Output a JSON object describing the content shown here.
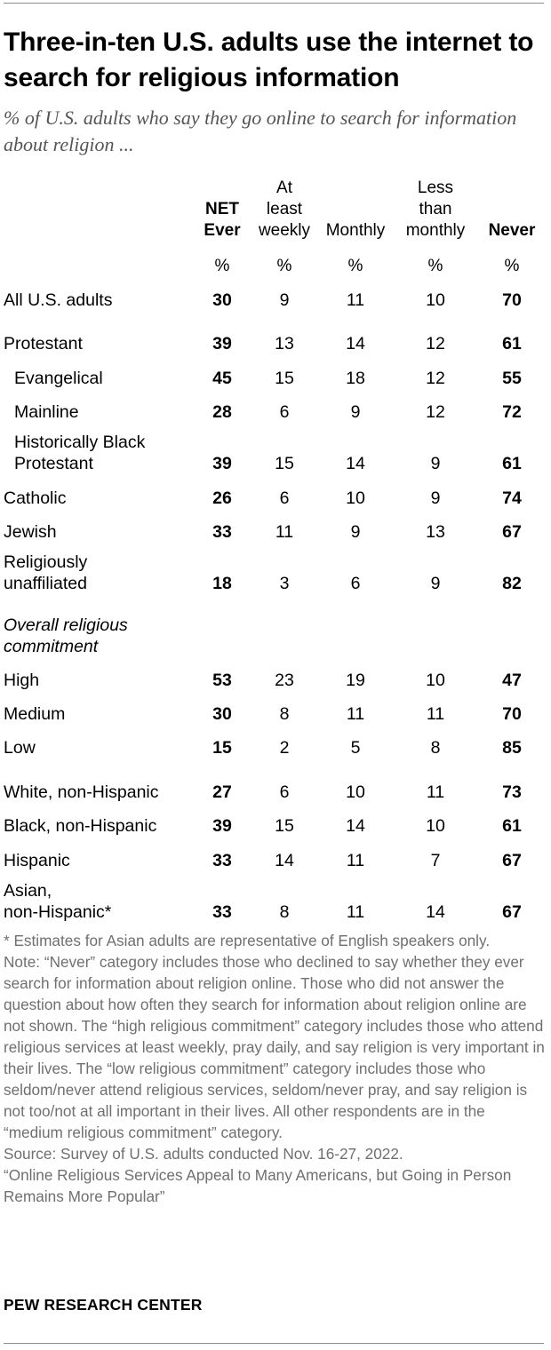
{
  "title": "Three-in-ten U.S. adults use the internet to search for religious information",
  "subtitle": "% of U.S. adults who say they go online to search for information about religion ...",
  "chart_data": {
    "type": "table",
    "columns": [
      {
        "label": [
          "NET",
          "Ever"
        ],
        "bold": true,
        "unit": "%"
      },
      {
        "label": [
          "At",
          "least",
          "weekly"
        ],
        "bold": false,
        "unit": "%"
      },
      {
        "label": [
          "Monthly"
        ],
        "bold": false,
        "unit": "%"
      },
      {
        "label": [
          "Less",
          "than",
          "monthly"
        ],
        "bold": false,
        "unit": "%"
      },
      {
        "label": [
          "Never"
        ],
        "bold": true,
        "unit": "%"
      }
    ],
    "rows": [
      {
        "label": [
          "All U.S. adults"
        ],
        "indent": false,
        "italic": false,
        "values": [
          "30",
          "9",
          "11",
          "10",
          "70"
        ]
      },
      {
        "label": [
          "Protestant"
        ],
        "indent": false,
        "italic": false,
        "values": [
          "39",
          "13",
          "14",
          "12",
          "61"
        ]
      },
      {
        "label": [
          "Evangelical"
        ],
        "indent": true,
        "italic": false,
        "values": [
          "45",
          "15",
          "18",
          "12",
          "55"
        ]
      },
      {
        "label": [
          "Mainline"
        ],
        "indent": true,
        "italic": false,
        "values": [
          "28",
          "6",
          "9",
          "12",
          "72"
        ]
      },
      {
        "label": [
          "Historically Black",
          "Protestant"
        ],
        "indent": true,
        "italic": false,
        "values": [
          "39",
          "15",
          "14",
          "9",
          "61"
        ]
      },
      {
        "label": [
          "Catholic"
        ],
        "indent": false,
        "italic": false,
        "values": [
          "26",
          "6",
          "10",
          "9",
          "74"
        ]
      },
      {
        "label": [
          "Jewish"
        ],
        "indent": false,
        "italic": false,
        "values": [
          "33",
          "11",
          "9",
          "13",
          "67"
        ]
      },
      {
        "label": [
          "Religiously",
          "unaffiliated"
        ],
        "indent": false,
        "italic": false,
        "values": [
          "18",
          "3",
          "6",
          "9",
          "82"
        ]
      },
      {
        "label": [
          "Overall religious",
          "commitment"
        ],
        "indent": false,
        "italic": true,
        "values": []
      },
      {
        "label": [
          "High"
        ],
        "indent": false,
        "italic": false,
        "values": [
          "53",
          "23",
          "19",
          "10",
          "47"
        ]
      },
      {
        "label": [
          "Medium"
        ],
        "indent": false,
        "italic": false,
        "values": [
          "30",
          "8",
          "11",
          "11",
          "70"
        ]
      },
      {
        "label": [
          "Low"
        ],
        "indent": false,
        "italic": false,
        "values": [
          "15",
          "2",
          "5",
          "8",
          "85"
        ]
      },
      {
        "label": [
          "White, non-Hispanic"
        ],
        "indent": false,
        "italic": false,
        "values": [
          "27",
          "6",
          "10",
          "11",
          "73"
        ]
      },
      {
        "label": [
          "Black, non-Hispanic"
        ],
        "indent": false,
        "italic": false,
        "values": [
          "39",
          "15",
          "14",
          "10",
          "61"
        ]
      },
      {
        "label": [
          "Hispanic"
        ],
        "indent": false,
        "italic": false,
        "values": [
          "33",
          "14",
          "11",
          "7",
          "67"
        ]
      },
      {
        "label": [
          "Asian,",
          "non-Hispanic*"
        ],
        "indent": false,
        "italic": false,
        "values": [
          "33",
          "8",
          "11",
          "14",
          "67"
        ]
      }
    ]
  },
  "notes": {
    "asterisk": "* Estimates for Asian adults are representative of English speakers only.",
    "note": "Note: “Never” category includes those who declined to say whether they ever search for information about religion online. Those who did not answer the question about how often they search for information about religion online are not shown. The “high religious commitment” category includes those who attend religious services at least weekly, pray daily, and say religion is very important in their lives. The “low religious commitment” category includes those who seldom/never attend religious services, seldom/never pray, and say religion is not too/not at all important in their lives. All other respondents are in the “medium religious commitment” category.",
    "source": "Source: Survey of U.S. adults conducted Nov. 16-27, 2022.",
    "report": "“Online Religious Services Appeal to Many Americans, but Going in Person Remains More Popular”"
  },
  "brand": "PEW RESEARCH CENTER"
}
